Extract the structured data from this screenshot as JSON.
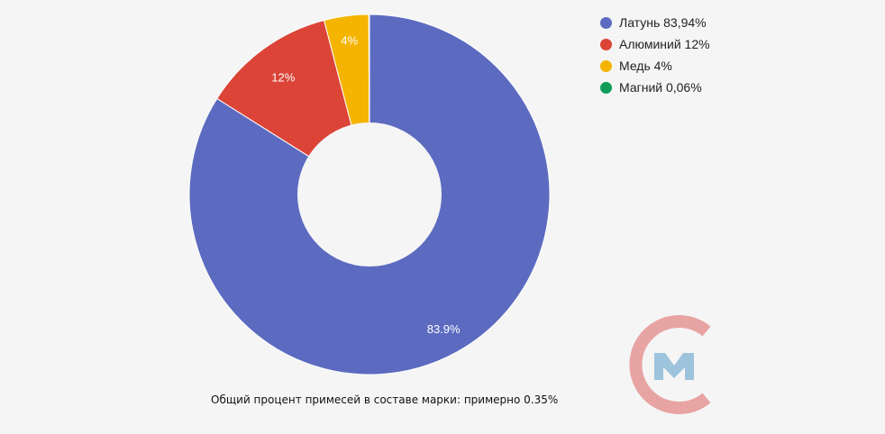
{
  "chart_data": {
    "type": "pie",
    "donut": true,
    "categories": [
      "Латунь 83,94%",
      "Алюминий 12%",
      "Медь 4%",
      "Магний 0,06%"
    ],
    "values": [
      83.94,
      12,
      4,
      0.06
    ],
    "slice_labels": [
      "83.9%",
      "12%",
      "4%",
      ""
    ],
    "colors": [
      "#5c6bc0",
      "#db4437",
      "#f4b400",
      "#0f9d58"
    ],
    "legend_position": "top-right"
  },
  "caption": "Общий процент примесей в составе марки: примерно 0.35%",
  "logo": {
    "icon": "cm-logo-icon",
    "ring_color": "#e8a3a3",
    "letter_color": "#9ec3dd"
  }
}
